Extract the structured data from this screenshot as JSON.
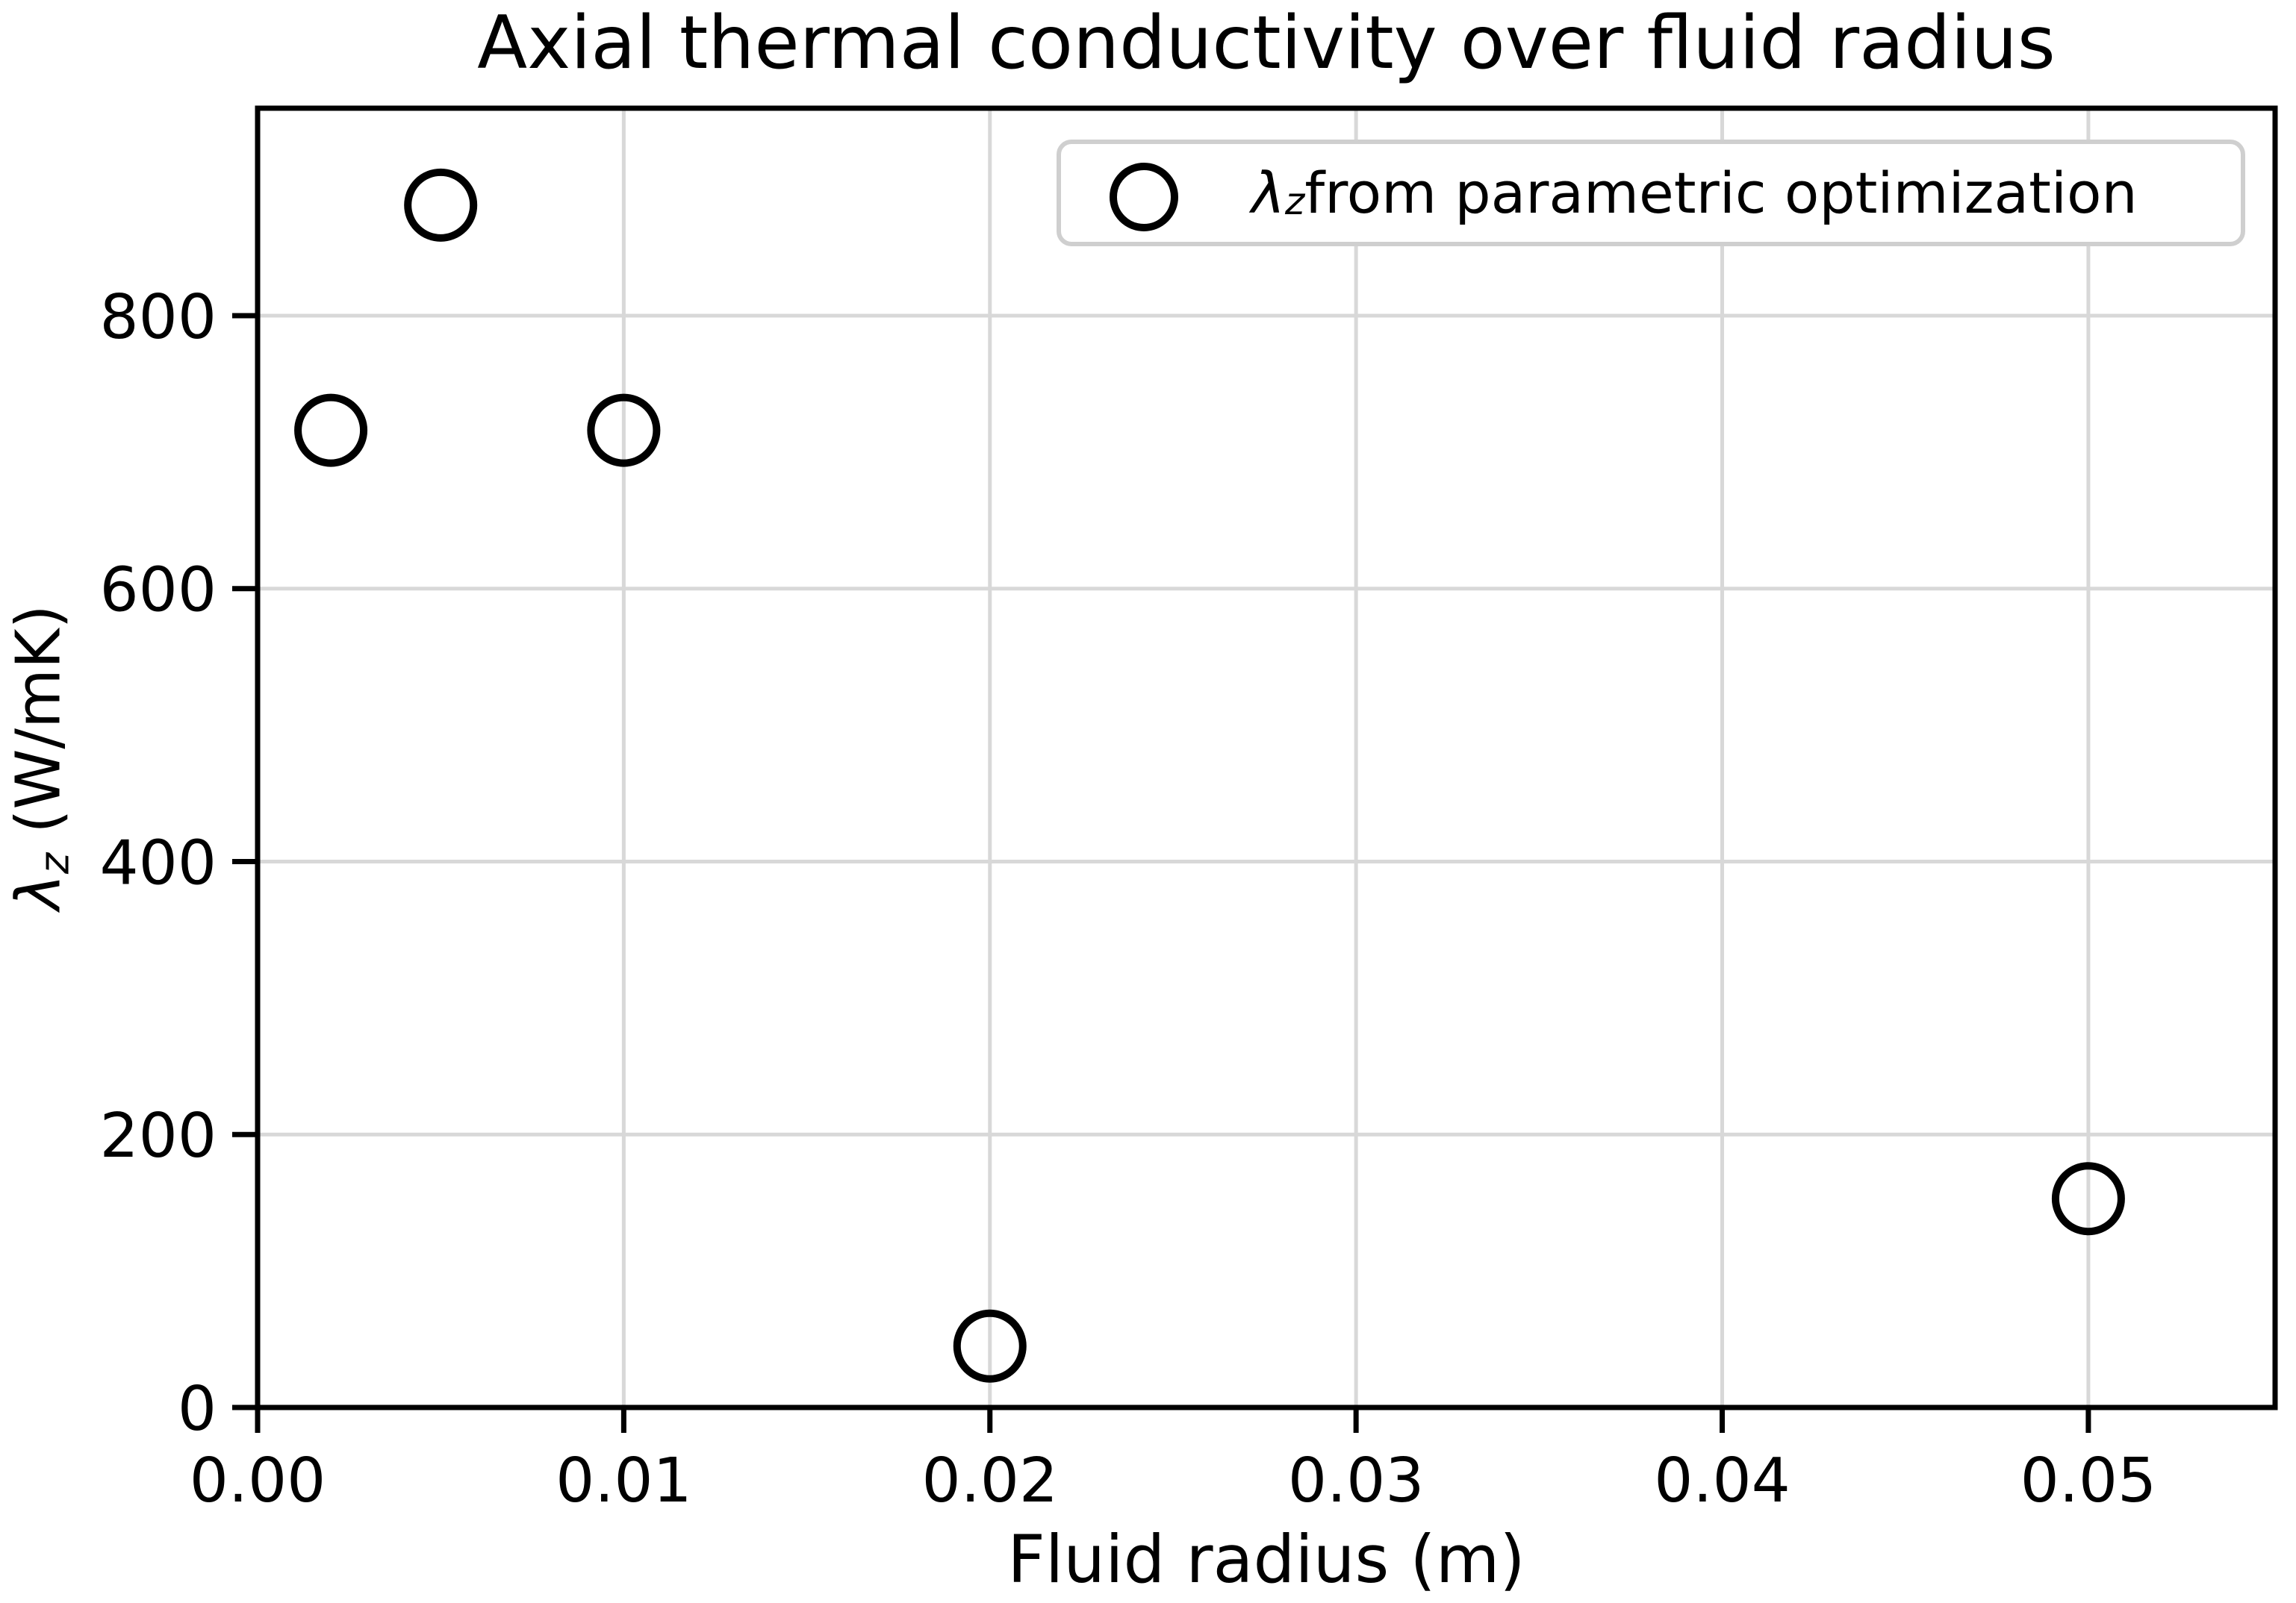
{
  "title": "Axial thermal conductivity over fluid radius",
  "xlabel": "Fluid radius (m)",
  "ylabel_parts": {
    "symbol": "λ",
    "subscript": "z",
    "rest": " (W/mK)"
  },
  "legend_parts": {
    "symbol": "λ",
    "subscript": "z",
    "rest": " from parametric optimization"
  },
  "chart_data": {
    "type": "scatter",
    "title": "Axial thermal conductivity over fluid radius",
    "xlabel": "Fluid radius (m)",
    "ylabel": "λ_z (W/mK)",
    "series": [
      {
        "name": "λ_z from parametric optimization",
        "marker": "open-circle",
        "x": [
          0.002,
          0.005,
          0.01,
          0.02,
          0.05
        ],
        "y": [
          716,
          881,
          716,
          45,
          153
        ]
      }
    ],
    "xticks": {
      "values": [
        0,
        0.01,
        0.02,
        0.03,
        0.04,
        0.05
      ],
      "labels": [
        "0.00",
        "0.01",
        "0.02",
        "0.03",
        "0.04",
        "0.05"
      ]
    },
    "yticks": {
      "values": [
        0,
        200,
        400,
        600,
        800
      ],
      "labels": [
        "0",
        "200",
        "400",
        "600",
        "800"
      ]
    },
    "xlim": [
      0,
      0.0551
    ],
    "ylim": [
      0,
      952
    ],
    "grid": true,
    "legend_position": "upper right",
    "colors": {
      "marker": "#000000",
      "grid": "#d8d8d8",
      "spine": "#000000",
      "text": "#000000",
      "legend_border": "#cfcfcf"
    }
  }
}
